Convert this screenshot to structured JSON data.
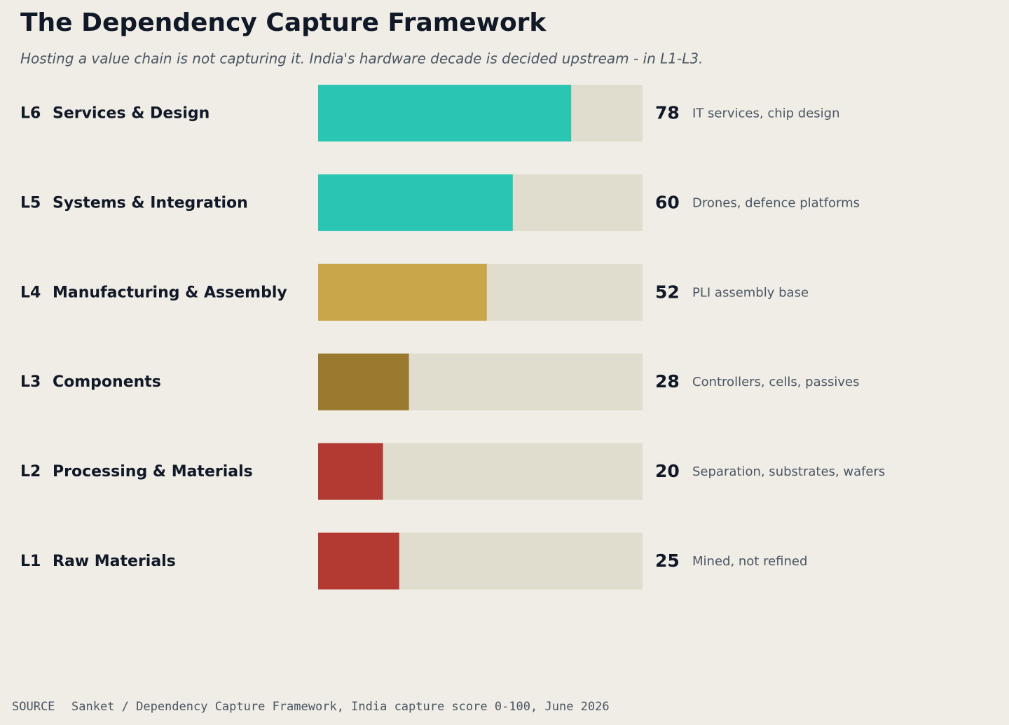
{
  "chart_data": {
    "type": "bar",
    "orientation": "horizontal",
    "title": "The Dependency Capture Framework",
    "subtitle": "Hosting a value chain is not capturing it. India's hardware decade is decided upstream - in L1-L3.",
    "levels": [
      "L6",
      "L5",
      "L4",
      "L3",
      "L2",
      "L1"
    ],
    "categories": [
      "Services & Design",
      "Systems & Integration",
      "Manufacturing & Assembly",
      "Components",
      "Processing & Materials",
      "Raw Materials"
    ],
    "values": [
      78,
      60,
      52,
      28,
      20,
      25
    ],
    "colors": [
      "#2bc5b4",
      "#2bc5b4",
      "#c9a64a",
      "#9a7a2e",
      "#b23a33",
      "#b23a33"
    ],
    "notes": [
      "IT services, chip design",
      "Drones, defence platforms",
      "PLI assembly base",
      "Controllers, cells, passives",
      "Separation, substrates, wafers",
      "Mined, not refined"
    ],
    "xlim": [
      0,
      100
    ],
    "source_label": "SOURCE",
    "source": "Sanket / Dependency Capture Framework, India capture score 0-100, June 2026"
  }
}
